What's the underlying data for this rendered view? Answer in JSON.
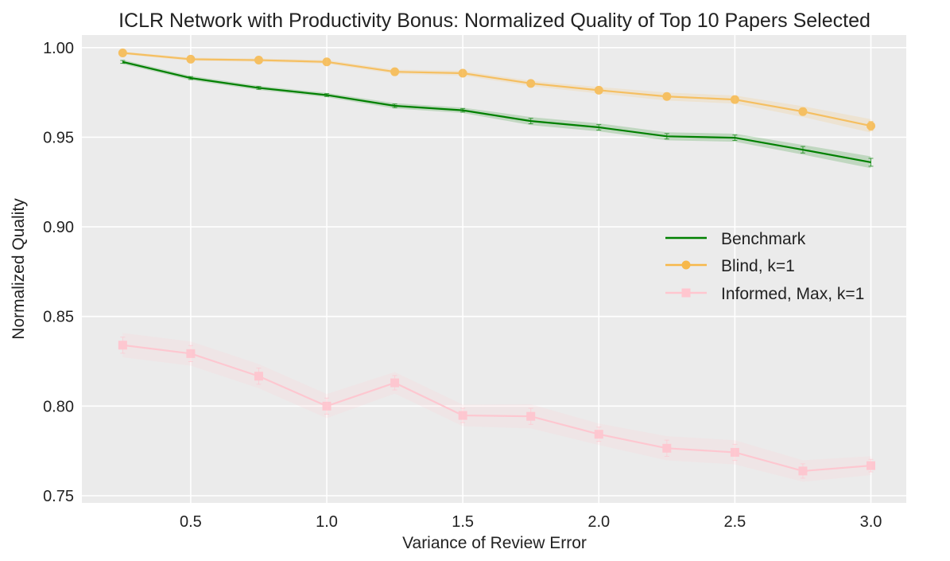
{
  "chart_data": {
    "type": "line",
    "title": "ICLR Network with Productivity Bonus: Normalized Quality of Top 10 Papers Selected",
    "xlabel": "Variance of Review Error",
    "ylabel": "Normalized Quality",
    "xlim": [
      0.1,
      3.13
    ],
    "ylim": [
      0.746,
      1.007
    ],
    "xticks": [
      0.5,
      1.0,
      1.5,
      2.0,
      2.5,
      3.0
    ],
    "xtick_labels": [
      "0.5",
      "1.0",
      "1.5",
      "2.0",
      "2.5",
      "3.0"
    ],
    "yticks": [
      0.75,
      0.8,
      0.85,
      0.9,
      0.95,
      1.0
    ],
    "ytick_labels": [
      "0.75",
      "0.80",
      "0.85",
      "0.90",
      "0.95",
      "1.00"
    ],
    "grid": true,
    "legend_position": "center-right",
    "x": [
      0.25,
      0.5,
      0.75,
      1.0,
      1.25,
      1.5,
      1.75,
      2.0,
      2.25,
      2.5,
      2.75,
      3.0
    ],
    "series": [
      {
        "name": "Benchmark",
        "color": "#008000",
        "marker": "none",
        "values": [
          0.992,
          0.983,
          0.9775,
          0.9735,
          0.9675,
          0.965,
          0.959,
          0.9555,
          0.9505,
          0.9497,
          0.943,
          0.936
        ],
        "errors": [
          0.0008,
          0.0008,
          0.0008,
          0.0008,
          0.001,
          0.001,
          0.0015,
          0.0015,
          0.0015,
          0.0015,
          0.0018,
          0.0022
        ]
      },
      {
        "name": "Blind, k=1",
        "color": "#f7b84a",
        "marker": "circle",
        "values": [
          0.997,
          0.9935,
          0.993,
          0.992,
          0.9865,
          0.9857,
          0.98,
          0.9762,
          0.9727,
          0.971,
          0.9643,
          0.9563
        ],
        "errors": [
          0.0005,
          0.0006,
          0.0006,
          0.0007,
          0.0008,
          0.0009,
          0.001,
          0.0012,
          0.0015,
          0.0015,
          0.002,
          0.0025
        ]
      },
      {
        "name": "Informed, Max, k=1",
        "color": "#ffc6cf",
        "marker": "square",
        "values": [
          0.834,
          0.8293,
          0.8167,
          0.8,
          0.813,
          0.7948,
          0.7943,
          0.7843,
          0.7765,
          0.7742,
          0.7638,
          0.7668
        ],
        "errors": [
          0.0045,
          0.0045,
          0.0045,
          0.0045,
          0.004,
          0.004,
          0.0045,
          0.004,
          0.0045,
          0.0045,
          0.004,
          0.0035
        ]
      }
    ]
  }
}
